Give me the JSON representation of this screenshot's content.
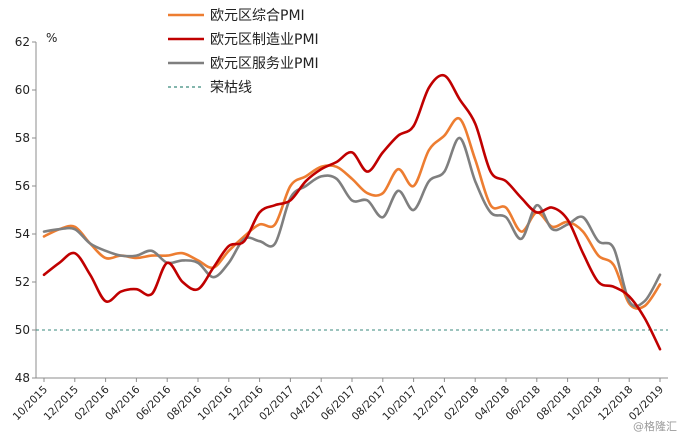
{
  "chart_data": {
    "type": "line",
    "unit_label": "%",
    "ylim": [
      48,
      62
    ],
    "yticks": [
      48,
      50,
      52,
      54,
      56,
      58,
      60,
      62
    ],
    "x_tick_labels": [
      "10/2015",
      "12/2015",
      "02/2016",
      "04/2016",
      "06/2016",
      "08/2016",
      "10/2016",
      "12/2016",
      "02/2017",
      "04/2017",
      "06/2017",
      "08/2017",
      "10/2017",
      "12/2017",
      "02/2018",
      "04/2018",
      "06/2018",
      "08/2018",
      "10/2018",
      "12/2018",
      "02/2019"
    ],
    "x": [
      "10/2015",
      "11/2015",
      "12/2015",
      "01/2016",
      "02/2016",
      "03/2016",
      "04/2016",
      "05/2016",
      "06/2016",
      "07/2016",
      "08/2016",
      "09/2016",
      "10/2016",
      "11/2016",
      "12/2016",
      "01/2017",
      "02/2017",
      "03/2017",
      "04/2017",
      "05/2017",
      "06/2017",
      "07/2017",
      "08/2017",
      "09/2017",
      "10/2017",
      "11/2017",
      "12/2017",
      "01/2018",
      "02/2018",
      "03/2018",
      "04/2018",
      "05/2018",
      "06/2018",
      "07/2018",
      "08/2018",
      "09/2018",
      "10/2018",
      "11/2018",
      "12/2018",
      "01/2019",
      "02/2019"
    ],
    "series": [
      {
        "name": "欧元区综合PMI",
        "color": "#ED7D31",
        "values": [
          53.9,
          54.2,
          54.3,
          53.6,
          53.0,
          53.1,
          53.0,
          53.1,
          53.1,
          53.2,
          52.9,
          52.6,
          53.3,
          53.9,
          54.4,
          54.4,
          56.0,
          56.4,
          56.8,
          56.8,
          56.3,
          55.7,
          55.7,
          56.7,
          56.0,
          57.5,
          58.1,
          58.8,
          57.1,
          55.2,
          55.1,
          54.1,
          54.9,
          54.3,
          54.5,
          54.1,
          53.1,
          52.7,
          51.1,
          51.0,
          51.9
        ]
      },
      {
        "name": "欧元区制造业PMI",
        "color": "#C00000",
        "values": [
          52.3,
          52.8,
          53.2,
          52.3,
          51.2,
          51.6,
          51.7,
          51.5,
          52.8,
          52.0,
          51.7,
          52.6,
          53.5,
          53.7,
          54.9,
          55.2,
          55.4,
          56.2,
          56.7,
          57.0,
          57.4,
          56.6,
          57.4,
          58.1,
          58.5,
          60.1,
          60.6,
          59.6,
          58.6,
          56.6,
          56.2,
          55.5,
          54.9,
          55.1,
          54.6,
          53.2,
          52.0,
          51.8,
          51.4,
          50.5,
          49.2
        ]
      },
      {
        "name": "欧元区服务业PMI",
        "color": "#7F7F7F",
        "values": [
          54.1,
          54.2,
          54.2,
          53.6,
          53.3,
          53.1,
          53.1,
          53.3,
          52.8,
          52.9,
          52.8,
          52.2,
          52.8,
          53.8,
          53.7,
          53.6,
          55.5,
          56.0,
          56.4,
          56.3,
          55.4,
          55.4,
          54.7,
          55.8,
          55.0,
          56.2,
          56.6,
          58.0,
          56.2,
          54.9,
          54.7,
          53.8,
          55.2,
          54.2,
          54.4,
          54.7,
          53.7,
          53.4,
          51.2,
          51.2,
          52.3
        ]
      }
    ],
    "reference_line": {
      "name": "荣枯线",
      "value": 50,
      "color": "#3A8A7C"
    },
    "legend_position": "top-left",
    "grid": false
  },
  "watermark": "@格隆汇"
}
